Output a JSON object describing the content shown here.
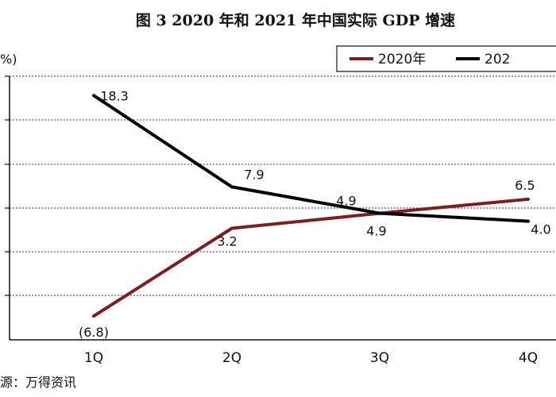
{
  "chart_data": {
    "type": "line",
    "title": "图 3   2020 年和 2021 年中国实际 GDP 增速",
    "unit_label": "%)",
    "categories": [
      "1Q",
      "2Q",
      "3Q",
      "4Q"
    ],
    "ylim": [
      -9.5,
      20.5
    ],
    "grid": "horizontal dashed",
    "legend_position": "top-right",
    "series": [
      {
        "name": "2020年",
        "color": "#7a1f1f",
        "values": [
          -6.8,
          3.2,
          4.9,
          6.5
        ],
        "labels": [
          "(6.8)",
          "3.2",
          "4.9",
          "6.5"
        ],
        "label_colors": [
          "#d9261c",
          "#111111",
          "#111111",
          "#111111"
        ]
      },
      {
        "name": "202",
        "color": "#000000",
        "values": [
          18.3,
          7.9,
          4.9,
          4.0
        ],
        "labels": [
          "18.3",
          "7.9",
          "4.9",
          "4.0"
        ],
        "label_colors": [
          "#111111",
          "#111111",
          "#111111",
          "#111111"
        ]
      }
    ],
    "source": "源：万得资讯"
  }
}
